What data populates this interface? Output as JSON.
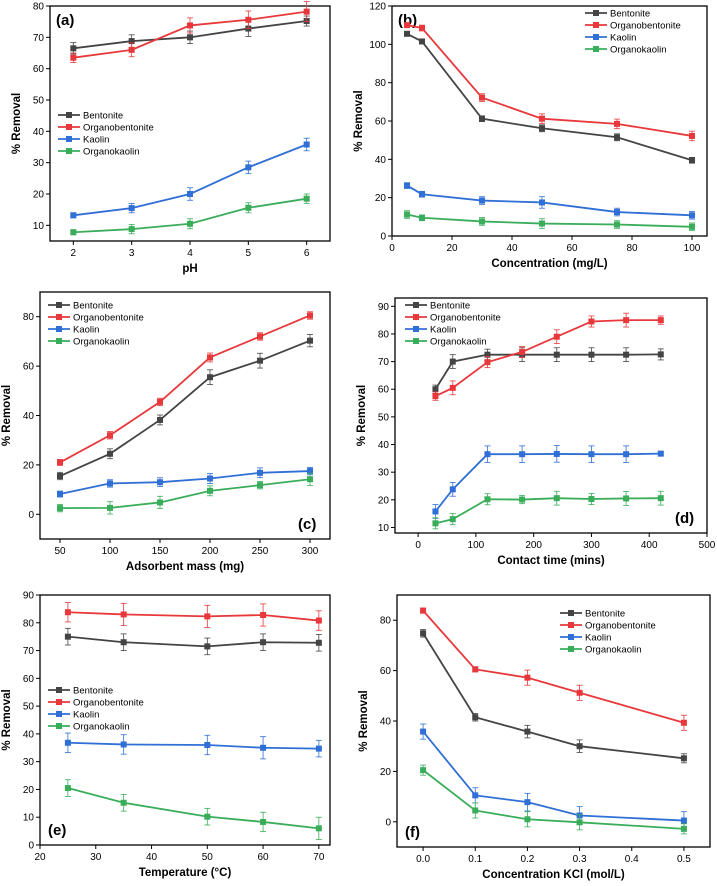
{
  "series_names": [
    "Bentonite",
    "Organobentonite",
    "Kaolin",
    "Organokaolin"
  ],
  "series_colors": [
    "#444444",
    "#e8383b",
    "#2f6fd6",
    "#3aad5b"
  ],
  "chart_data": [
    {
      "panel": "(a)",
      "type": "line",
      "xlabel": "pH",
      "ylabel": "% Removal",
      "xlim": [
        1.6,
        6.4
      ],
      "ylim": [
        5,
        80
      ],
      "xticks": [
        2,
        3,
        4,
        5,
        6
      ],
      "yticks": [
        10,
        20,
        30,
        40,
        50,
        60,
        70,
        80
      ],
      "legend": "middle-left",
      "x": [
        2,
        3,
        4,
        5,
        6
      ],
      "series": [
        {
          "name": "Bentonite",
          "values": [
            66.5,
            68.8,
            70,
            72.8,
            75.2
          ],
          "errors": [
            1.8,
            2,
            2,
            2.5,
            1.6
          ]
        },
        {
          "name": "Organobentonite",
          "values": [
            63.5,
            66,
            73.8,
            75.6,
            78.2
          ],
          "errors": [
            1.5,
            2.2,
            2.4,
            2.8,
            3.2
          ]
        },
        {
          "name": "Kaolin",
          "values": [
            13.2,
            15.5,
            20,
            28.5,
            35.8
          ],
          "errors": [
            0.8,
            1.5,
            2,
            2,
            2
          ]
        },
        {
          "name": "Organokaolin",
          "values": [
            7.8,
            8.8,
            10.5,
            15.6,
            18.5
          ],
          "errors": [
            0.8,
            1.5,
            1.6,
            1.6,
            1.5
          ]
        }
      ]
    },
    {
      "panel": "(b)",
      "type": "line",
      "xlabel": "Concentration (mg/L)",
      "ylabel": "% Removal",
      "xlim": [
        0,
        105
      ],
      "ylim": [
        0,
        120
      ],
      "xticks": [
        0,
        20,
        40,
        60,
        80,
        100
      ],
      "yticks": [
        0,
        20,
        40,
        60,
        80,
        100,
        120
      ],
      "legend": "top-right",
      "x": [
        5,
        10,
        30,
        50,
        75,
        100
      ],
      "series": [
        {
          "name": "Bentonite",
          "values": [
            105.5,
            101.5,
            61.2,
            56.2,
            51.5,
            39.5
          ],
          "errors": [
            1.2,
            1.2,
            1.5,
            1.8,
            1.8,
            1.5
          ]
        },
        {
          "name": "Organobentonite",
          "values": [
            110,
            108.5,
            72.2,
            61.2,
            58.5,
            52.2
          ],
          "errors": [
            1.2,
            1.5,
            2,
            2.5,
            2.5,
            2.5
          ]
        },
        {
          "name": "Kaolin",
          "values": [
            26.3,
            21.8,
            18.5,
            17.5,
            12.5,
            10.8
          ],
          "errors": [
            1.5,
            1.5,
            2,
            3,
            2,
            2
          ]
        },
        {
          "name": "Organokaolin",
          "values": [
            11.2,
            9.5,
            7.6,
            6.5,
            6,
            4.8
          ],
          "errors": [
            2,
            1.5,
            2,
            2.5,
            2,
            2
          ]
        }
      ]
    },
    {
      "panel": "(c)",
      "type": "line",
      "xlabel": "Adsorbent mass (mg)",
      "ylabel": "% Removal",
      "xlim": [
        30,
        320
      ],
      "ylim": [
        -10,
        90
      ],
      "xticks": [
        50,
        100,
        150,
        200,
        250,
        300
      ],
      "yticks": [
        0,
        20,
        40,
        60,
        80
      ],
      "legend": "top-left",
      "x": [
        50,
        100,
        150,
        200,
        250,
        300
      ],
      "series": [
        {
          "name": "Bentonite",
          "values": [
            15.5,
            24.5,
            38.2,
            55.5,
            62.2,
            70.3
          ],
          "errors": [
            1.5,
            2,
            2,
            3,
            3,
            2.5
          ]
        },
        {
          "name": "Organobentonite",
          "values": [
            21,
            32,
            45.5,
            63.5,
            72,
            80.5
          ],
          "errors": [
            1.2,
            1.5,
            1.5,
            1.8,
            1.5,
            1.5
          ]
        },
        {
          "name": "Kaolin",
          "values": [
            8.2,
            12.5,
            13,
            14.5,
            16.8,
            17.5
          ],
          "errors": [
            1.2,
            1.5,
            1.8,
            2,
            2,
            1.5
          ]
        },
        {
          "name": "Organokaolin",
          "values": [
            2.5,
            2.6,
            4.8,
            9.5,
            11.8,
            14.2
          ],
          "errors": [
            1.5,
            2.5,
            2.5,
            2,
            1.5,
            2.5
          ]
        }
      ]
    },
    {
      "panel": "(d)",
      "type": "line",
      "xlabel": "Contact time (mins)",
      "ylabel": "% Removal",
      "xlim": [
        -40,
        500
      ],
      "ylim": [
        8,
        93
      ],
      "xticks": [
        0,
        100,
        200,
        300,
        400,
        500
      ],
      "yticks": [
        10,
        20,
        30,
        40,
        50,
        60,
        70,
        80,
        90
      ],
      "legend": "top-left",
      "x": [
        30,
        60,
        120,
        180,
        240,
        300,
        360,
        420
      ],
      "series": [
        {
          "name": "Bentonite",
          "values": [
            60,
            70,
            72.5,
            72.5,
            72.5,
            72.5,
            72.5,
            72.6
          ],
          "errors": [
            1.5,
            2.5,
            2,
            2.5,
            2.5,
            2.5,
            2.5,
            2
          ]
        },
        {
          "name": "Organobentonite",
          "values": [
            57.5,
            60.5,
            69.8,
            73.5,
            79,
            84.5,
            85,
            85
          ],
          "errors": [
            1.5,
            2.5,
            2,
            2,
            2.5,
            2,
            2.5,
            1.5
          ]
        },
        {
          "name": "Kaolin",
          "values": [
            15.8,
            23.8,
            36.5,
            36.5,
            36.6,
            36.5,
            36.5,
            36.7
          ],
          "errors": [
            2.5,
            2.5,
            3,
            3,
            3,
            3,
            3,
            0.8
          ]
        },
        {
          "name": "Organokaolin",
          "values": [
            11.5,
            13,
            20.2,
            20.1,
            20.6,
            20.3,
            20.5,
            20.6
          ],
          "errors": [
            2,
            2,
            2,
            1.5,
            2.5,
            2,
            2.5,
            2.5
          ]
        }
      ]
    },
    {
      "panel": "(e)",
      "type": "line",
      "xlabel": "Temperature (°C)",
      "ylabel": "% Removal",
      "xlim": [
        20,
        72
      ],
      "ylim": [
        0,
        90
      ],
      "xticks": [
        20,
        30,
        40,
        50,
        60,
        70
      ],
      "yticks": [
        0,
        10,
        20,
        30,
        40,
        50,
        60,
        70,
        80,
        90
      ],
      "legend": "middle-left",
      "x": [
        25,
        35,
        50,
        60,
        70
      ],
      "series": [
        {
          "name": "Bentonite",
          "values": [
            75,
            73,
            71.5,
            73,
            72.8
          ],
          "errors": [
            3,
            3,
            3,
            3,
            3
          ]
        },
        {
          "name": "Organobentonite",
          "values": [
            83.8,
            83,
            82.3,
            82.8,
            80.8
          ],
          "errors": [
            3.5,
            4,
            4,
            4,
            3.5
          ]
        },
        {
          "name": "Kaolin",
          "values": [
            36.8,
            36.2,
            36,
            35,
            34.7
          ],
          "errors": [
            3.5,
            3.5,
            3.5,
            4,
            3
          ]
        },
        {
          "name": "Organokaolin",
          "values": [
            20.5,
            15.2,
            10.2,
            8.3,
            6
          ],
          "errors": [
            3,
            3,
            3,
            3.5,
            4
          ]
        }
      ]
    },
    {
      "panel": "(f)",
      "type": "line",
      "xlabel": "Concentration KCl (mol/L)",
      "ylabel": "% Removal",
      "xlim": [
        -0.05,
        0.55
      ],
      "ylim": [
        -10,
        90
      ],
      "xticks": [
        0.0,
        0.1,
        0.2,
        0.3,
        0.4,
        0.5
      ],
      "yticks": [
        0,
        20,
        40,
        60,
        80
      ],
      "legend": "top-right",
      "x": [
        0,
        0.1,
        0.2,
        0.3,
        0.5
      ],
      "series": [
        {
          "name": "Bentonite",
          "values": [
            74.8,
            41.5,
            35.8,
            30,
            25.2
          ],
          "errors": [
            1.5,
            1.5,
            2.5,
            2.5,
            1.8
          ]
        },
        {
          "name": "Organobentonite",
          "values": [
            83.8,
            60.5,
            57.2,
            51.2,
            39.3
          ],
          "errors": [
            1,
            1,
            3,
            3,
            3
          ]
        },
        {
          "name": "Kaolin",
          "values": [
            35.8,
            10.5,
            7.8,
            2.5,
            0.5
          ],
          "errors": [
            3,
            3,
            3.5,
            3.5,
            3.5
          ]
        },
        {
          "name": "Organokaolin",
          "values": [
            20.5,
            4.5,
            1,
            -0.2,
            -2.8
          ],
          "errors": [
            2,
            3,
            3,
            3,
            2
          ]
        }
      ]
    }
  ]
}
